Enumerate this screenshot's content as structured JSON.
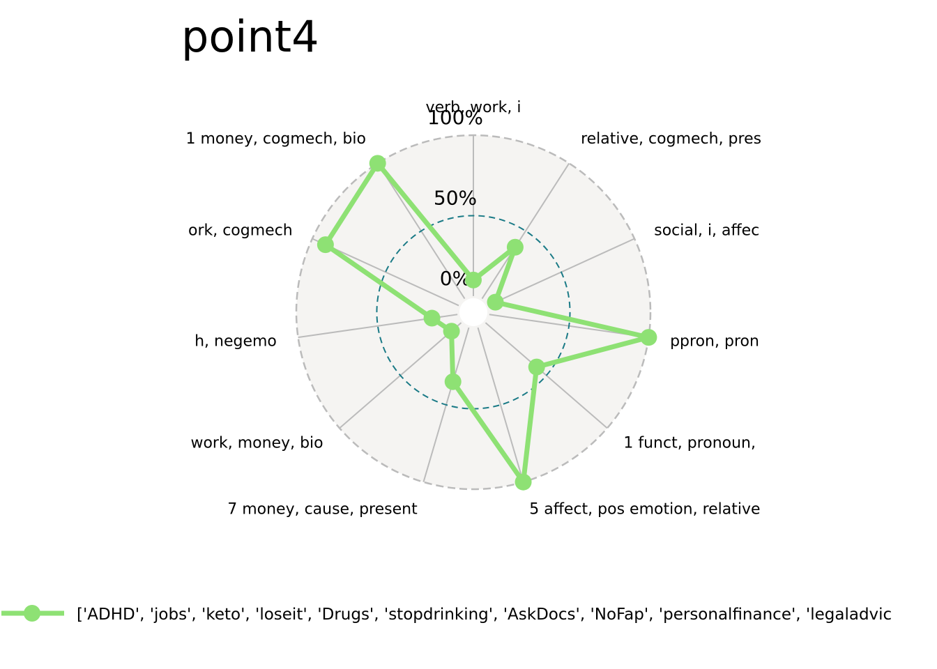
{
  "chart_data": {
    "type": "radar",
    "title": "point4",
    "axes": [
      "verb, work, i",
      "relative, cogmech, pres",
      "social, i, affec",
      "ppron, pron",
      "1 funct, pronoun,",
      "5 affect, pos emotion, relative",
      "7 money, cause, present",
      "work, money, bio",
      "h, negemo",
      "ork, cogmech",
      "1 money, cogmech, bio"
    ],
    "radial_ticks": [
      {
        "value": 0,
        "label": "0%"
      },
      {
        "value": 50,
        "label": "50%"
      },
      {
        "value": 100,
        "label": "100%"
      }
    ],
    "rlim": [
      -10,
      100
    ],
    "series": [
      {
        "name": "['ADHD', 'jobs', 'keto', 'loseit', 'Drugs', 'stopdrinking', 'AskDocs', 'NoFap', 'personalfinance', 'legaladvic",
        "color": "#8ee174",
        "values": [
          10,
          38,
          5,
          100,
          42,
          100,
          35,
          8,
          16,
          91,
          100
        ]
      }
    ],
    "background_color": "#f5f4f2",
    "grid_color": "#bbbbbb",
    "midline_color": "#1a7a86",
    "legend_position": "bottom"
  }
}
